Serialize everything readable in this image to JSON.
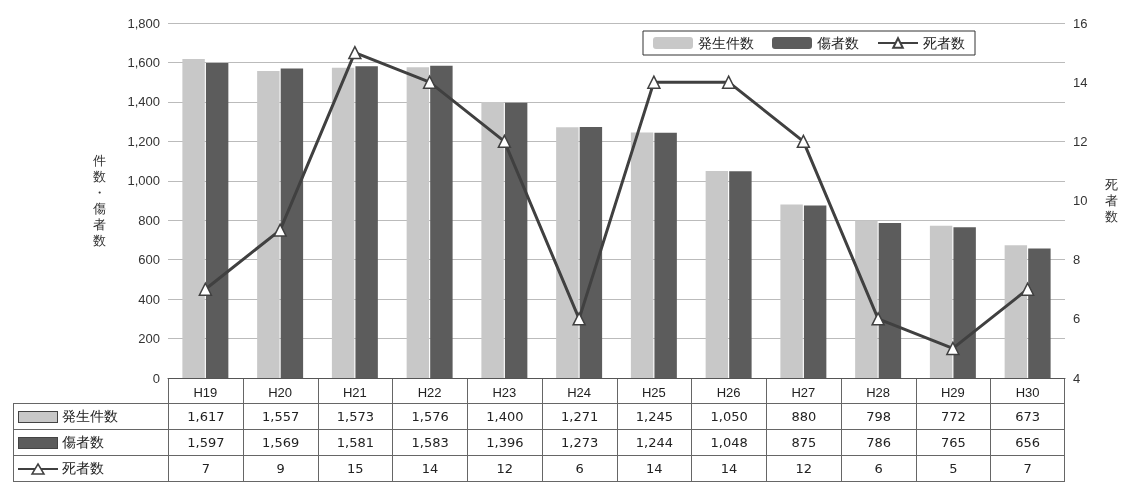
{
  "chart_data": {
    "type": "bar",
    "ylabel": "件数・傷者数",
    "y2label": "死者数",
    "categories": [
      "H19",
      "H20",
      "H21",
      "H22",
      "H23",
      "H24",
      "H25",
      "H26",
      "H27",
      "H28",
      "H29",
      "H30"
    ],
    "series": [
      {
        "name": "発生件数",
        "color": "#c8c8c8",
        "values": [
          1617,
          1557,
          1573,
          1576,
          1400,
          1271,
          1245,
          1050,
          880,
          798,
          772,
          673
        ],
        "value_labels": [
          "1,617",
          "1,557",
          "1,573",
          "1,576",
          "1,400",
          "1,271",
          "1,245",
          "1,050",
          "880",
          "798",
          "772",
          "673"
        ]
      },
      {
        "name": "傷者数",
        "color": "#5c5c5c",
        "values": [
          1597,
          1569,
          1581,
          1583,
          1396,
          1273,
          1244,
          1048,
          875,
          786,
          765,
          656
        ],
        "value_labels": [
          "1,597",
          "1,569",
          "1,581",
          "1,583",
          "1,396",
          "1,273",
          "1,244",
          "1,048",
          "875",
          "786",
          "765",
          "656"
        ]
      },
      {
        "name": "死者数",
        "type": "line",
        "axis": "y2",
        "color": "#404040",
        "values": [
          7,
          9,
          15,
          14,
          12,
          6,
          14,
          14,
          12,
          6,
          5,
          7
        ],
        "value_labels": [
          "7",
          "9",
          "15",
          "14",
          "12",
          "6",
          "14",
          "14",
          "12",
          "6",
          "5",
          "7"
        ]
      }
    ],
    "ylim": [
      0,
      1800
    ],
    "yticks": [
      0,
      {
        "value": 200,
        "label": "200"
      },
      {
        "value": 400,
        "label": "400"
      },
      {
        "value": 600,
        "label": "600"
      },
      {
        "value": 800,
        "label": "800"
      },
      {
        "value": 1000,
        "label": "1,000"
      },
      {
        "value": 1200,
        "label": "1,200"
      },
      {
        "value": 1400,
        "label": "1,400"
      },
      {
        "value": 1600,
        "label": "1,600"
      },
      {
        "value": 1800,
        "label": "1,800"
      }
    ],
    "y2lim": [
      4,
      16
    ],
    "y2ticks": [
      4,
      6,
      8,
      10,
      12,
      14,
      16
    ],
    "grid": "y",
    "legend": "top right",
    "marker": "triangle"
  }
}
